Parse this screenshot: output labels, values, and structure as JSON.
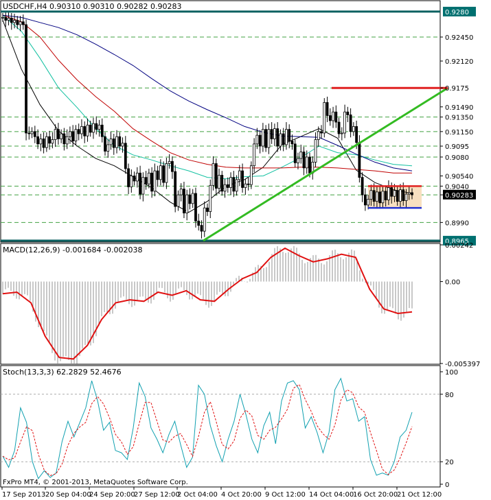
{
  "header": {
    "symbol_line": "USDCHF,H4  0.90310 0.90310 0.90282 0.90283",
    "macd_line": "MACD(12,26,9) -0.001684 -0.002038",
    "stoch_line": "Stoch(13,3,3) 62.2829 52.4676",
    "copyright": "FxPro MT4, © 2001-2013, MetaQuotes Software Corp."
  },
  "chart_data": [
    {
      "type": "line",
      "title": "USDCHF,H4",
      "symbol": "USDCHF",
      "timeframe": "H4",
      "ohlc_last": {
        "open": 0.9031,
        "high": 0.9031,
        "low": 0.90282,
        "close": 0.90283
      },
      "x_tick_labels": [
        "17 Sep 2013",
        "20 Sep 04:00",
        "24 Sep 20:00",
        "27 Sep 12:00",
        "2 Oct 04:00",
        "4 Oct 20:00",
        "9 Oct 12:00",
        "14 Oct 04:00",
        "16 Oct 20:00",
        "21 Oct 12:00"
      ],
      "price_labels": [
        "0.9280",
        "0.92450",
        "0.92120",
        "0.9175",
        "0.91490",
        "0.91350",
        "0.91150",
        "0.9095",
        "0.9080",
        "0.90540",
        "0.9040",
        "0.9028",
        "0.90283",
        "0.8990",
        "0.8965"
      ],
      "ylim": [
        0.8963,
        0.9295
      ],
      "horizontal_levels": [
        0.928,
        0.9245,
        0.9175,
        0.9135,
        0.9115,
        0.9095,
        0.908,
        0.904,
        0.9028,
        0.899,
        0.8965
      ],
      "close_series": [
        0.9272,
        0.9268,
        0.9271,
        0.9265,
        0.9268,
        0.9262,
        0.9266,
        0.9262,
        0.9113,
        0.9112,
        0.9115,
        0.9108,
        0.9098,
        0.9105,
        0.9093,
        0.9108,
        0.9099,
        0.9104,
        0.9118,
        0.9105,
        0.9112,
        0.9098,
        0.9108,
        0.9115,
        0.9102,
        0.9118,
        0.9112,
        0.9122,
        0.9109,
        0.9124,
        0.9114,
        0.9126,
        0.9118,
        0.9124,
        0.9108,
        0.9088,
        0.9097,
        0.9105,
        0.9093,
        0.9108,
        0.9095,
        0.9099,
        0.9064,
        0.9039,
        0.9054,
        0.9047,
        0.9058,
        0.9029,
        0.9052,
        0.9043,
        0.9058,
        0.9033,
        0.9061,
        0.9049,
        0.9068,
        0.9045,
        0.9071,
        0.9074,
        0.906,
        0.9012,
        0.9028,
        0.9036,
        0.9003,
        0.9028,
        0.9016,
        0.903,
        0.8992,
        0.8986,
        0.8978,
        0.901,
        0.9005,
        0.9041,
        0.9071,
        0.9037,
        0.9055,
        0.9033,
        0.9042,
        0.9038,
        0.9052,
        0.9033,
        0.9049,
        0.9061,
        0.9038,
        0.9043,
        0.9042,
        0.9068,
        0.9098,
        0.911,
        0.9095,
        0.9118,
        0.9093,
        0.9118,
        0.9105,
        0.9119,
        0.9095,
        0.9112,
        0.9097,
        0.9118,
        0.9102,
        0.9098,
        0.9072,
        0.9078,
        0.9087,
        0.9065,
        0.908,
        0.9058,
        0.9073,
        0.9104,
        0.9115,
        0.9113,
        0.9155,
        0.9137,
        0.913,
        0.9142,
        0.9128,
        0.9112,
        0.9113,
        0.9142,
        0.9138,
        0.9115,
        0.9122,
        0.91,
        0.9052,
        0.9028,
        0.9014,
        0.9022,
        0.9034,
        0.9019,
        0.9032,
        0.9017,
        0.9033,
        0.9021,
        0.9038,
        0.9026,
        0.9034,
        0.9019,
        0.9035,
        0.902,
        0.9029,
        0.9031,
        0.9028
      ],
      "moving_averages": [
        {
          "color": "#000000",
          "values": [
            0.9268,
            0.9201,
            0.9152,
            0.9116,
            0.9095,
            0.9078,
            0.9068,
            0.9053,
            0.9038,
            0.9018,
            0.9004,
            0.9019,
            0.904,
            0.9049,
            0.9066,
            0.9097,
            0.9108,
            0.9119,
            0.9106,
            0.9062,
            0.9045,
            0.9035,
            0.903
          ]
        },
        {
          "color": "#10c0a0",
          "values": [
            0.9275,
            0.9253,
            0.9216,
            0.9175,
            0.9148,
            0.9119,
            0.9096,
            0.9083,
            0.9076,
            0.9068,
            0.9061,
            0.9052,
            0.905,
            0.9053,
            0.9054,
            0.9066,
            0.9079,
            0.9095,
            0.9086,
            0.9083,
            0.9076,
            0.907,
            0.9068
          ]
        },
        {
          "color": "#c00000",
          "values": [
            0.9275,
            0.9266,
            0.9245,
            0.9213,
            0.9186,
            0.9163,
            0.9143,
            0.9119,
            0.9102,
            0.9086,
            0.9076,
            0.907,
            0.9066,
            0.9065,
            0.9065,
            0.9065,
            0.9066,
            0.9066,
            0.9065,
            0.9063,
            0.9061,
            0.9058,
            0.9058
          ]
        },
        {
          "color": "#000080",
          "values": [
            0.9275,
            0.9272,
            0.9265,
            0.9258,
            0.9248,
            0.9235,
            0.9221,
            0.9206,
            0.9188,
            0.9171,
            0.9157,
            0.9145,
            0.9134,
            0.9122,
            0.9114,
            0.9109,
            0.9108,
            0.9107,
            0.9096,
            0.9084,
            0.9073,
            0.9065,
            0.9061
          ]
        }
      ],
      "trendline": {
        "from": 0.8965,
        "to": 0.9175,
        "color": "#33bb22"
      },
      "box": {
        "top": 0.904,
        "bottom": 0.901,
        "color": "#f8e0c0"
      }
    },
    {
      "type": "bar",
      "title": "MACD(12,26,9)",
      "main": -0.001684,
      "signal": -0.002038,
      "y_tick_labels": [
        "0.00242",
        "0.00",
        "-0.005397"
      ],
      "ylim": [
        -0.005397,
        0.00242
      ],
      "signal_series": [
        -0.0008,
        -0.0007,
        -0.0014,
        -0.0036,
        -0.005,
        -0.0051,
        -0.0042,
        -0.0025,
        -0.0014,
        -0.0012,
        -0.0013,
        -0.0007,
        -0.0009,
        -0.0006,
        -0.0012,
        -0.0013,
        -0.0005,
        0.0002,
        0.0006,
        0.0016,
        0.0022,
        0.0017,
        0.0013,
        0.0015,
        0.0018,
        0.0016,
        -0.0005,
        -0.0018,
        -0.0021,
        -0.002
      ]
    },
    {
      "type": "line",
      "title": "Stoch(13,3,3)",
      "main": 62.2829,
      "signal": 52.4676,
      "y_tick_labels": [
        "100",
        "80",
        "20",
        "0"
      ],
      "ylim": [
        0,
        100
      ],
      "levels": [
        80,
        20
      ],
      "main_series": [
        25,
        15,
        30,
        68,
        55,
        20,
        5,
        12,
        6,
        10,
        38,
        56,
        42,
        55,
        68,
        92,
        74,
        48,
        55,
        30,
        28,
        22,
        50,
        90,
        78,
        50,
        40,
        28,
        44,
        56,
        35,
        15,
        24,
        88,
        80,
        52,
        34,
        20,
        40,
        56,
        80,
        62,
        40,
        28,
        52,
        64,
        36,
        74,
        90,
        92,
        84,
        50,
        60,
        46,
        28,
        46,
        84,
        94,
        74,
        76,
        56,
        60,
        22,
        8,
        10,
        8,
        20,
        42,
        48,
        64
      ]
    }
  ],
  "x_axis": {
    "labels": [
      "17 Sep 2013",
      "20 Sep 04:00",
      "24 Sep 20:00",
      "27 Sep 12:00",
      "2 Oct 04:00",
      "4 Oct 20:00",
      "9 Oct 12:00",
      "14 Oct 04:00",
      "16 Oct 20:00",
      "21 Oct 12:00"
    ]
  },
  "colors": {
    "grid": "#40a040",
    "price_line": "#0a6060",
    "label_box": "#007070",
    "current_price_box": "#000000",
    "resistance": "#e02020",
    "support": "#2030d0",
    "trendline": "#33bb22",
    "macd_signal": "#e01010",
    "stoch_main": "#10a0b0",
    "stoch_signal": "#e01010"
  }
}
